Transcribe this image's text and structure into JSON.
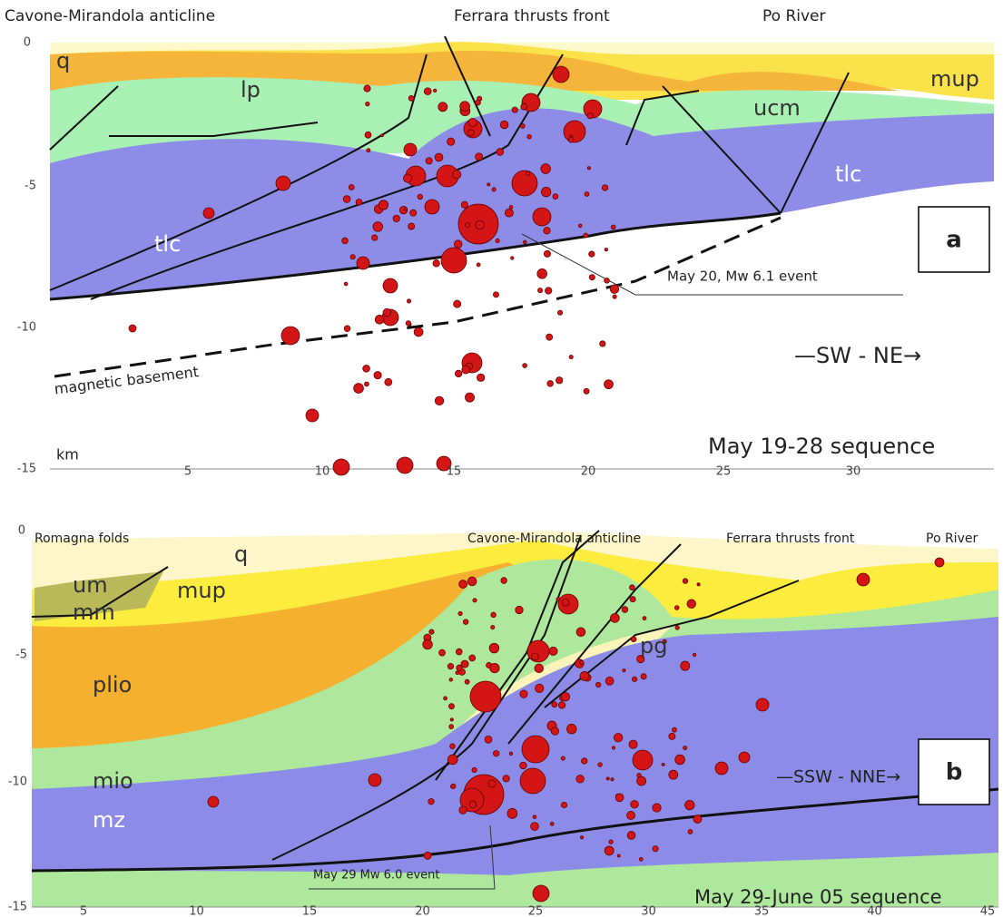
{
  "panels": [
    {
      "letter": "a",
      "top_labels": [
        "Cavone-Mirandola anticline",
        "Ferrara thrusts front",
        "Po River"
      ],
      "unit_labels": [
        "q",
        "lp",
        "mup",
        "ucm",
        "tlc",
        "tlc"
      ],
      "y_ticks": [
        "0",
        "-5",
        "-10",
        "-15"
      ],
      "x_ticks": [
        "5",
        "10",
        "15",
        "20",
        "25",
        "30"
      ],
      "y_unit": "km",
      "annotations": [
        "May 20, Mw 6.1 event",
        "magnetic basement",
        "—SW - NE→",
        "May 19-28 sequence"
      ]
    },
    {
      "letter": "b",
      "top_labels": [
        "Romagna folds",
        "Cavone-Mirandola anticline",
        "Ferrara thrusts front",
        "Po River"
      ],
      "unit_labels": [
        "q",
        "um",
        "mm",
        "mup",
        "plio",
        "pg",
        "mio",
        "mz"
      ],
      "y_ticks": [
        "0",
        "-5",
        "-10",
        "-15"
      ],
      "x_ticks": [
        "5",
        "10",
        "15",
        "20",
        "25",
        "30",
        "35",
        "40",
        "45"
      ],
      "annotations": [
        "May 29 Mw 6.0 event",
        "—SSW - NNE→",
        "May 29-June 05 sequence"
      ]
    }
  ]
}
